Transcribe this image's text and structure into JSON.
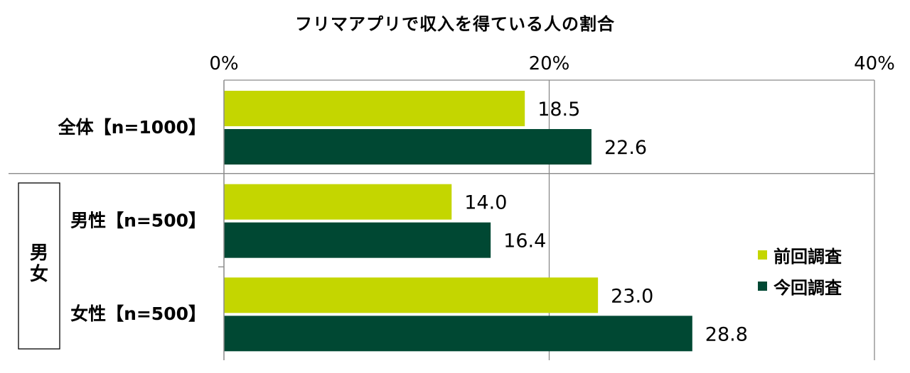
{
  "chart_data": {
    "type": "bar",
    "orientation": "horizontal",
    "title": "フリマアプリで収入を得ている人の割合",
    "categories": [
      "全体【n=1000】",
      "男性【n=500】",
      "女性【n=500】"
    ],
    "group_label": "男女",
    "xlim": [
      0,
      40
    ],
    "xticks": [
      "0%",
      "20%",
      "40%"
    ],
    "grid": true,
    "legend_position": "right",
    "series": [
      {
        "name": "前回調査",
        "color": "#c4d600",
        "values": [
          18.5,
          14.0,
          23.0
        ],
        "labels": [
          "18.5",
          "14.0",
          "23.0"
        ]
      },
      {
        "name": "今回調査",
        "color": "#004833",
        "values": [
          22.6,
          16.4,
          28.8
        ],
        "labels": [
          "22.6",
          "16.4",
          "28.8"
        ]
      }
    ]
  }
}
